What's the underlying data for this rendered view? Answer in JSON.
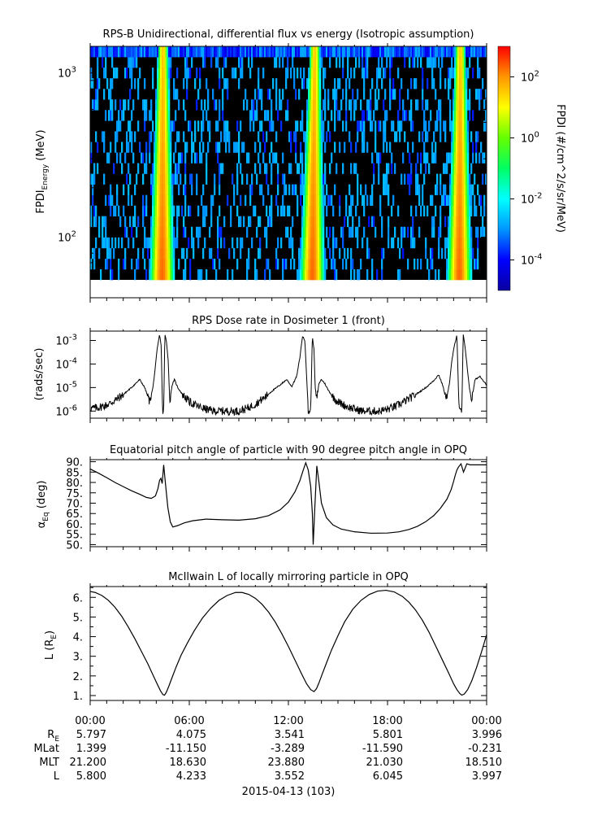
{
  "colors": {
    "axis": "#000000",
    "trace": "#000000",
    "background": "#ffffff"
  },
  "chart_data": [
    {
      "type": "heatmap",
      "title": "RPS-B  Unidirectional, differential flux vs energy (Isotropic assumption)",
      "ylabel_main": "FPDI",
      "ylabel_sub": "Energy",
      "ylabel_tail": " (MeV)",
      "y_scale": "log",
      "ylim": [
        55,
        1450
      ],
      "yticks": [
        {
          "base": "10",
          "exp": "3",
          "value": 1000
        },
        {
          "base": "10",
          "exp": "2",
          "value": 100
        }
      ],
      "energy_channels_min": 55,
      "energy_channels_max": 1450,
      "colorbar": {
        "label": "FPDI (#/cm^2/s/sr/MeV)",
        "scale": "log",
        "range": [
          1e-05,
          1000
        ],
        "ticks": [
          {
            "base": "10",
            "exp": "2"
          },
          {
            "base": "10",
            "exp": "0"
          },
          {
            "base": "10",
            "exp": "-2"
          },
          {
            "base": "10",
            "exp": "-4"
          }
        ],
        "tick_values": [
          2,
          0,
          -2,
          -4
        ],
        "palette": [
          "#0a00a0",
          "#0000ff",
          "#0096ff",
          "#00ffff",
          "#00ff64",
          "#64ff00",
          "#ffff00",
          "#ff9600",
          "#ff0000"
        ]
      },
      "belt_peaks_hours": [
        4.4,
        13.5,
        22.4
      ],
      "belt_peak_log_flux": 2.3,
      "background": "#000000"
    },
    {
      "type": "line",
      "title": "RPS  Dose rate in Dosimeter 1 (front)",
      "ylabel": "(rads/sec)",
      "y_scale": "log",
      "ylim": [
        5e-07,
        0.0025
      ],
      "yticks": [
        {
          "base": "10",
          "exp": "-3"
        },
        {
          "base": "10",
          "exp": "-4"
        },
        {
          "base": "10",
          "exp": "-5"
        },
        {
          "base": "10",
          "exp": "-6"
        }
      ],
      "ytick_values": [
        -3,
        -4,
        -5,
        -6
      ],
      "x": [
        0,
        0.5,
        1,
        1.5,
        2,
        2.5,
        3,
        3.3,
        3.6,
        3.8,
        3.95,
        4.05,
        4.2,
        4.3,
        4.38,
        4.45,
        4.52,
        4.62,
        4.72,
        4.82,
        4.95,
        5.1,
        5.3,
        5.6,
        6,
        6.5,
        7,
        7.5,
        8,
        8.5,
        9,
        9.5,
        10,
        10.5,
        11,
        11.5,
        11.9,
        12.2,
        12.5,
        12.7,
        12.85,
        13.0,
        13.2,
        13.35,
        13.45,
        13.55,
        13.62,
        13.72,
        13.85,
        14.0,
        14.2,
        14.4,
        14.7,
        15,
        15.5,
        16,
        16.5,
        17,
        17.5,
        18,
        18.5,
        19,
        19.5,
        20,
        20.4,
        20.8,
        21.1,
        21.35,
        21.55,
        21.75,
        21.9,
        22.05,
        22.2,
        22.33,
        22.42,
        22.5,
        22.58,
        22.7,
        22.82,
        22.95,
        23.1,
        23.3,
        23.6,
        24
      ],
      "values": [
        1.3e-06,
        1.4e-06,
        1.8e-06,
        2.8e-06,
        5e-06,
        1e-05,
        2.2e-05,
        1e-05,
        2.5e-06,
        1e-05,
        8e-05,
        0.0004,
        0.0018,
        0.0006,
        1e-06,
        1e-06,
        0.0018,
        0.0009,
        0.00015,
        2.5e-06,
        1.2e-05,
        2.2e-05,
        1e-05,
        5e-06,
        2.5e-06,
        1.6e-06,
        1.2e-06,
        1e-06,
        1e-06,
        1e-06,
        1e-06,
        1.3e-06,
        2e-06,
        3.5e-06,
        7e-06,
        1.3e-05,
        2.2e-05,
        1.1e-05,
        3e-05,
        0.0002,
        0.0015,
        0.001,
        1e-06,
        1e-06,
        0.0016,
        0.0004,
        1e-05,
        3e-06,
        1.5e-05,
        2.2e-05,
        1.5e-05,
        8e-06,
        4e-06,
        2.5e-06,
        1.6e-06,
        1.2e-06,
        1e-06,
        1e-06,
        1e-06,
        1.2e-06,
        1.6e-06,
        2.5e-06,
        4e-06,
        7e-06,
        1.1e-05,
        2e-05,
        3.5e-05,
        1.2e-05,
        3e-06,
        1.5e-05,
        0.00015,
        0.0006,
        0.0018,
        1e-06,
        1e-06,
        1e-06,
        0.0018,
        0.0005,
        8e-05,
        1e-05,
        3e-06,
        2.2e-05,
        3e-05,
        1.3e-05
      ]
    },
    {
      "type": "line",
      "title": "Equatorial pitch angle of particle with 90 degree pitch angle in OPQ",
      "ylabel_main": "α",
      "ylabel_sub": "Eq",
      "ylabel_tail": " (deg)",
      "ylim": [
        49,
        91
      ],
      "yticks": [
        "90.",
        "85.",
        "80.",
        "75.",
        "70.",
        "65.",
        "60.",
        "55.",
        "50."
      ],
      "ytick_values": [
        90,
        85,
        80,
        75,
        70,
        65,
        60,
        55,
        50
      ],
      "x": [
        0,
        0.5,
        1,
        1.5,
        2,
        2.5,
        3,
        3.4,
        3.7,
        3.95,
        4.1,
        4.2,
        4.28,
        4.36,
        4.45,
        4.55,
        4.7,
        4.85,
        5,
        5.3,
        5.7,
        6.2,
        7,
        8,
        9,
        10,
        10.8,
        11.5,
        12,
        12.4,
        12.7,
        12.9,
        13.05,
        13.2,
        13.35,
        13.45,
        13.5,
        13.6,
        13.72,
        13.85,
        14.0,
        14.3,
        14.7,
        15.2,
        16,
        17,
        18,
        18.7,
        19.3,
        19.8,
        20.3,
        20.8,
        21.2,
        21.6,
        21.85,
        22.0,
        22.1,
        22.2,
        22.3,
        22.45,
        22.6,
        22.8,
        23.0,
        23.5,
        24
      ],
      "values": [
        86.5,
        84.5,
        82.3,
        80.0,
        78.0,
        76.0,
        74.3,
        72.8,
        72.3,
        73.5,
        77.0,
        81.0,
        82.0,
        79.5,
        88.5,
        80.0,
        68.0,
        61.0,
        58.5,
        59.2,
        60.5,
        61.5,
        62.3,
        62.0,
        61.8,
        62.5,
        64.0,
        66.8,
        70.5,
        75.5,
        81.0,
        86.0,
        89.5,
        86.0,
        78.0,
        65.0,
        50.0,
        68.0,
        88.0,
        80.0,
        70.0,
        63.0,
        59.5,
        57.5,
        56.2,
        55.5,
        55.6,
        56.2,
        57.3,
        58.8,
        61.0,
        64.0,
        67.5,
        72.0,
        76.5,
        80.5,
        83.5,
        86.0,
        87.5,
        89.0,
        85.0,
        89.0,
        88.5,
        88.5,
        88.5
      ]
    },
    {
      "type": "line",
      "title": "McIlwain L of locally mirroring particle in OPQ",
      "ylabel_main": "L (R",
      "ylabel_sub": "E",
      "ylabel_tail": ")",
      "ylim": [
        0.75,
        6.55
      ],
      "yticks": [
        "6.",
        "5.",
        "4.",
        "3.",
        "2.",
        "1."
      ],
      "ytick_values": [
        6,
        5,
        4,
        3,
        2,
        1
      ],
      "x": [
        0,
        0.3,
        0.7,
        1.1,
        1.5,
        1.9,
        2.3,
        2.7,
        3.1,
        3.5,
        3.8,
        4.05,
        4.25,
        4.4,
        4.5,
        4.6,
        4.75,
        4.95,
        5.2,
        5.5,
        5.9,
        6.3,
        6.8,
        7.3,
        7.8,
        8.3,
        8.8,
        9.2,
        9.6,
        10.0,
        10.4,
        10.8,
        11.2,
        11.6,
        12.0,
        12.4,
        12.8,
        13.1,
        13.35,
        13.55,
        13.7,
        13.85,
        14.05,
        14.3,
        14.6,
        15.0,
        15.4,
        15.9,
        16.4,
        16.9,
        17.4,
        17.9,
        18.4,
        18.9,
        19.3,
        19.7,
        20.1,
        20.5,
        20.9,
        21.3,
        21.7,
        22.0,
        22.2,
        22.38,
        22.5,
        22.65,
        22.85,
        23.1,
        23.4,
        23.7,
        24
      ],
      "values": [
        6.3,
        6.25,
        6.1,
        5.85,
        5.5,
        5.05,
        4.5,
        3.9,
        3.25,
        2.6,
        2.05,
        1.6,
        1.25,
        1.05,
        1.02,
        1.15,
        1.45,
        1.9,
        2.45,
        3.05,
        3.7,
        4.3,
        4.95,
        5.45,
        5.85,
        6.1,
        6.25,
        6.25,
        6.15,
        5.95,
        5.65,
        5.25,
        4.75,
        4.15,
        3.5,
        2.8,
        2.1,
        1.6,
        1.3,
        1.2,
        1.35,
        1.65,
        2.1,
        2.65,
        3.3,
        4.05,
        4.75,
        5.4,
        5.85,
        6.15,
        6.32,
        6.36,
        6.28,
        6.05,
        5.75,
        5.35,
        4.85,
        4.25,
        3.55,
        2.85,
        2.15,
        1.6,
        1.3,
        1.1,
        1.02,
        1.08,
        1.3,
        1.75,
        2.45,
        3.25,
        4.1
      ]
    }
  ],
  "xaxis": {
    "hours": [
      0,
      6,
      12,
      18,
      24
    ],
    "tick_labels": [
      "00:00",
      "06:00",
      "12:00",
      "18:00",
      "00:00"
    ],
    "date_label": "2015-04-13 (103)"
  },
  "ephemeris": {
    "rows": [
      {
        "label_main": "R",
        "label_sub": "E",
        "values": [
          "5.797",
          "4.075",
          "3.541",
          "5.801",
          "3.996"
        ]
      },
      {
        "label_main": "MLat",
        "label_sub": "",
        "values": [
          "1.399",
          "-11.150",
          "-3.289",
          "-11.590",
          "-0.231"
        ]
      },
      {
        "label_main": "MLT",
        "label_sub": "",
        "values": [
          "21.200",
          "18.630",
          "23.880",
          "21.030",
          "18.510"
        ]
      },
      {
        "label_main": "L",
        "label_sub": "",
        "values": [
          "5.800",
          "4.233",
          "3.552",
          "6.045",
          "3.997"
        ]
      }
    ]
  }
}
